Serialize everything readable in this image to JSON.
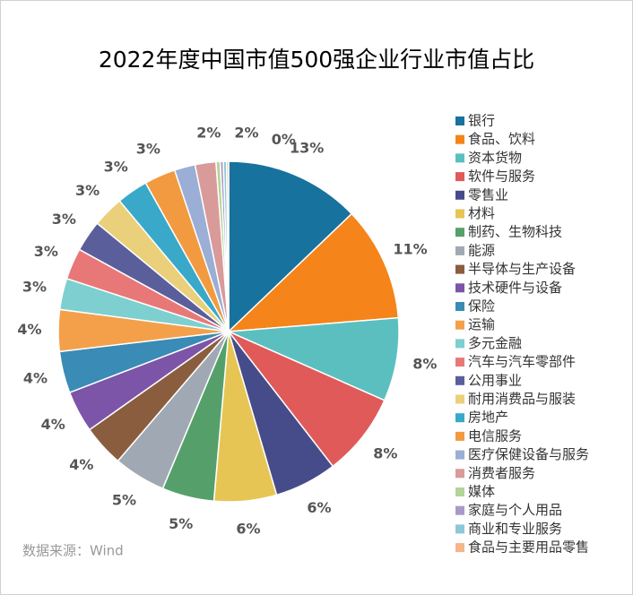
{
  "chart_data": {
    "type": "pie",
    "title": "2022年度中国市值500强企业行业市值占比",
    "source": "数据来源：Wind",
    "categories": [
      "银行",
      "食品、饮料",
      "资本货物",
      "软件与服务",
      "零售业",
      "材料",
      "制药、生物科技",
      "能源",
      "半导体与生产设备",
      "技术硬件与设备",
      "保险",
      "运输",
      "多元金融",
      "汽车与汽车零部件",
      "公用事业",
      "耐用消费品与服装",
      "房地产",
      "电信服务",
      "医疗保健设备与服务",
      "消费者服务",
      "媒体",
      "家庭与个人用品",
      "商业和专业服务",
      "食品与主要用品零售"
    ],
    "values": [
      13,
      11,
      8,
      8,
      6,
      6,
      5,
      5,
      4,
      4,
      4,
      4,
      3,
      3,
      3,
      3,
      3,
      3,
      2,
      2,
      0.4,
      0.3,
      0.3,
      0.2
    ],
    "value_labels": [
      "13%",
      "11%",
      "8%",
      "8%",
      "6%",
      "6%",
      "5%",
      "5%",
      "4%",
      "4%",
      "4%",
      "4%",
      "3%",
      "3%",
      "3%",
      "3%",
      "3%",
      "3%",
      "2%",
      "2%",
      "0%",
      null,
      null,
      null
    ],
    "colors": [
      "#17729e",
      "#f5841a",
      "#5bbfc0",
      "#e05a5a",
      "#464c8a",
      "#e6c555",
      "#55a06a",
      "#a0a9b3",
      "#8b5d3f",
      "#7c55a8",
      "#3a8bb5",
      "#f4a04a",
      "#7ecfcf",
      "#e87878",
      "#5a5e9a",
      "#ead07a",
      "#3aa8c8",
      "#f29a40",
      "#9aaed6",
      "#d99a9a",
      "#b5d49a",
      "#a89ac8",
      "#8cc8d8",
      "#f5b48a"
    ],
    "legend": "right"
  }
}
